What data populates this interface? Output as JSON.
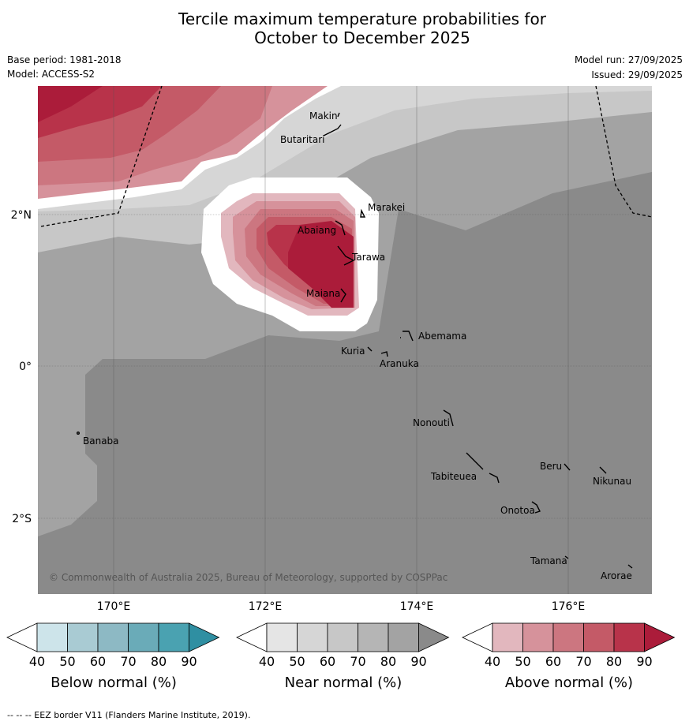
{
  "title": {
    "line1": "Tercile maximum temperature probabilities for",
    "line2": "October to December 2025"
  },
  "meta": {
    "base_period": "Base period: 1981-2018",
    "model": "Model: ACCESS-S2",
    "model_run": "Model run: 27/09/2025",
    "issued": "Issued: 29/09/2025"
  },
  "map": {
    "lat_labels": [
      "2°N",
      "0°",
      "2°S"
    ],
    "lon_labels": [
      "170°E",
      "172°E",
      "174°E",
      "176°E"
    ],
    "copyright": "© Commonwealth of Australia 2025, Bureau of Meteorology, supported by COSPPac",
    "islands": [
      "Makin",
      "Butaritari",
      "Marakei",
      "Abaiang",
      "Tarawa",
      "Maiana",
      "Abemama",
      "Kuria",
      "Aranuka",
      "Banaba",
      "Nonouti",
      "Beru",
      "Nikunau",
      "Tabiteuea",
      "Onotoa",
      "Tamana",
      "Arorae"
    ]
  },
  "colorbars": {
    "below": {
      "title": "Below normal (%)",
      "ticks": [
        "40",
        "50",
        "60",
        "70",
        "80",
        "90"
      ],
      "colors": [
        "#ffffff",
        "#cde4ea",
        "#a9cbd3",
        "#8db9c4",
        "#6aabb8",
        "#4aa2b1",
        "#2f8fa2"
      ]
    },
    "near": {
      "title": "Near normal (%)",
      "ticks": [
        "40",
        "50",
        "60",
        "70",
        "80",
        "90"
      ],
      "colors": [
        "#ffffff",
        "#e5e5e5",
        "#d6d6d6",
        "#c7c7c7",
        "#b5b5b5",
        "#a3a3a3",
        "#8a8a8a"
      ]
    },
    "above": {
      "title": "Above normal (%)",
      "ticks": [
        "40",
        "50",
        "60",
        "70",
        "80",
        "90"
      ],
      "colors": [
        "#ffffff",
        "#e2b7be",
        "#d6929b",
        "#cc7680",
        "#c45a67",
        "#b8334a",
        "#ab1c3a"
      ]
    }
  },
  "footer": "--  --  -- EEZ border V11 (Flanders Marine Institute, 2019)."
}
